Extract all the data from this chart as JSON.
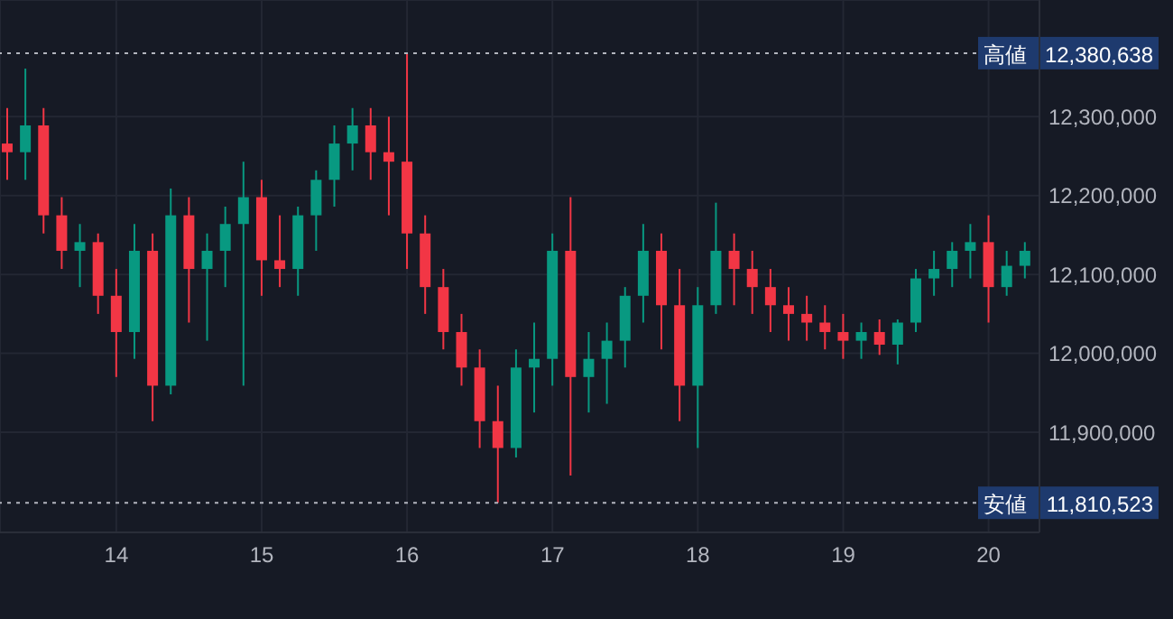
{
  "chart_data": {
    "type": "candlestick",
    "x": [
      13.25,
      13.375,
      13.5,
      13.625,
      13.75,
      13.875,
      14,
      14.125,
      14.25,
      14.375,
      14.5,
      14.625,
      14.75,
      14.875,
      15,
      15.125,
      15.25,
      15.375,
      15.5,
      15.625,
      15.75,
      15.875,
      16,
      16.125,
      16.25,
      16.375,
      16.5,
      16.625,
      16.75,
      16.875,
      17,
      17.125,
      17.25,
      17.375,
      17.5,
      17.625,
      17.75,
      17.875,
      18,
      18.125,
      18.25,
      18.375,
      18.5,
      18.625,
      18.75,
      18.875,
      19,
      19.125,
      19.25,
      19.375,
      19.5,
      19.625,
      19.75,
      19.875,
      20,
      20.125,
      20.25
    ],
    "ohlc": [
      [
        12266000,
        12311000,
        12220000,
        12255000
      ],
      [
        12255000,
        12361000,
        12220000,
        12289000
      ],
      [
        12289000,
        12311000,
        12152000,
        12175000
      ],
      [
        12175000,
        12198000,
        12107000,
        12130000
      ],
      [
        12130000,
        12164000,
        12084000,
        12141000
      ],
      [
        12141000,
        12152000,
        12050000,
        12073000
      ],
      [
        12073000,
        12107000,
        11970000,
        12027000
      ],
      [
        12027000,
        12164000,
        11993000,
        12130000
      ],
      [
        12130000,
        12152000,
        11914000,
        11959000
      ],
      [
        11959000,
        12209000,
        11948000,
        12175000
      ],
      [
        12175000,
        12198000,
        12039000,
        12107000
      ],
      [
        12107000,
        12152000,
        12016000,
        12130000
      ],
      [
        12130000,
        12186000,
        12084000,
        12164000
      ],
      [
        12164000,
        12243000,
        11959000,
        12198000
      ],
      [
        12198000,
        12220000,
        12073000,
        12118000
      ],
      [
        12118000,
        12175000,
        12084000,
        12107000
      ],
      [
        12107000,
        12186000,
        12073000,
        12175000
      ],
      [
        12175000,
        12232000,
        12130000,
        12220000
      ],
      [
        12220000,
        12289000,
        12186000,
        12266000
      ],
      [
        12266000,
        12311000,
        12232000,
        12289000
      ],
      [
        12289000,
        12311000,
        12220000,
        12255000
      ],
      [
        12255000,
        12300000,
        12175000,
        12243000
      ],
      [
        12243000,
        12380638,
        12107000,
        12152000
      ],
      [
        12152000,
        12175000,
        12050000,
        12084000
      ],
      [
        12084000,
        12107000,
        12005000,
        12027000
      ],
      [
        12027000,
        12050000,
        11959000,
        11982000
      ],
      [
        11982000,
        12005000,
        11880000,
        11914000
      ],
      [
        11914000,
        11959000,
        11810523,
        11880000
      ],
      [
        11880000,
        12005000,
        11868000,
        11982000
      ],
      [
        11982000,
        12039000,
        11925000,
        11993000
      ],
      [
        11993000,
        12152000,
        11959000,
        12130000
      ],
      [
        12130000,
        12198000,
        11845000,
        11970000
      ],
      [
        11970000,
        12027000,
        11925000,
        11993000
      ],
      [
        11993000,
        12039000,
        11936000,
        12016000
      ],
      [
        12016000,
        12084000,
        11982000,
        12073000
      ],
      [
        12073000,
        12164000,
        12039000,
        12130000
      ],
      [
        12130000,
        12152000,
        12005000,
        12061000
      ],
      [
        12061000,
        12107000,
        11914000,
        11959000
      ],
      [
        11959000,
        12084000,
        11880000,
        12061000
      ],
      [
        12061000,
        12191000,
        12050000,
        12130000
      ],
      [
        12130000,
        12152000,
        12061000,
        12107000
      ],
      [
        12107000,
        12130000,
        12050000,
        12084000
      ],
      [
        12084000,
        12107000,
        12027000,
        12061000
      ],
      [
        12061000,
        12084000,
        12016000,
        12050000
      ],
      [
        12050000,
        12073000,
        12016000,
        12039000
      ],
      [
        12039000,
        12061000,
        12005000,
        12027000
      ],
      [
        12027000,
        12050000,
        11993000,
        12016000
      ],
      [
        12016000,
        12039000,
        11993000,
        12027000
      ],
      [
        12027000,
        12043000,
        11998000,
        12011000
      ],
      [
        12011000,
        12043000,
        11986000,
        12039000
      ],
      [
        12039000,
        12107000,
        12027000,
        12095000
      ],
      [
        12095000,
        12130000,
        12073000,
        12107000
      ],
      [
        12107000,
        12141000,
        12084000,
        12130000
      ],
      [
        12130000,
        12164000,
        12095000,
        12141000
      ],
      [
        12141000,
        12175000,
        12039000,
        12084000
      ],
      [
        12084000,
        12130000,
        12073000,
        12111000
      ],
      [
        12111000,
        12141000,
        12095000,
        12130000
      ]
    ],
    "colors": [
      "#f23645",
      "#089981",
      "#f23645",
      "#f23645",
      "#089981",
      "#f23645",
      "#f23645",
      "#089981",
      "#f23645",
      "#089981",
      "#f23645",
      "#089981",
      "#089981",
      "#089981",
      "#f23645",
      "#f23645",
      "#089981",
      "#089981",
      "#089981",
      "#089981",
      "#f23645",
      "#f23645",
      "#f23645",
      "#f23645",
      "#f23645",
      "#f23645",
      "#f23645",
      "#f23645",
      "#089981",
      "#089981",
      "#089981",
      "#f23645",
      "#089981",
      "#089981",
      "#089981",
      "#089981",
      "#f23645",
      "#f23645",
      "#089981",
      "#089981",
      "#f23645",
      "#f23645",
      "#f23645",
      "#f23645",
      "#f23645",
      "#f23645",
      "#f23645",
      "#089981",
      "#f23645",
      "#089981",
      "#089981",
      "#089981",
      "#089981",
      "#089981",
      "#f23645",
      "#089981",
      "#089981"
    ],
    "xlim": [
      13.2,
      20.35
    ],
    "xticks": [
      14,
      15,
      16,
      17,
      18,
      19,
      20
    ],
    "ylim": [
      11773000,
      12448000
    ],
    "yticks": [
      {
        "value": 11900000,
        "label": "11,900,000"
      },
      {
        "value": 12000000,
        "label": "12,000,000"
      },
      {
        "value": 12100000,
        "label": "12,100,000"
      },
      {
        "value": 12200000,
        "label": "12,200,000"
      },
      {
        "value": 12300000,
        "label": "12,300,000"
      }
    ],
    "annotations": [
      "12,380,638",
      "11,810,523"
    ],
    "ref_lines": [
      {
        "axis": "y",
        "value": 12380638,
        "label": "高値",
        "color": "#b2b5be",
        "line_style": "dotted"
      },
      {
        "axis": "y",
        "value": 11810523,
        "label": "安値",
        "color": "#b2b5be",
        "line_style": "dotted"
      }
    ],
    "grid": true,
    "legend": false
  }
}
